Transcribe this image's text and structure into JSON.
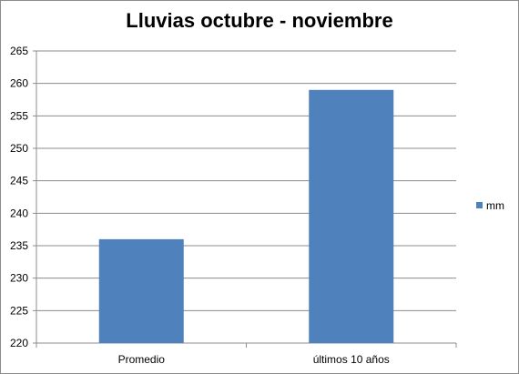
{
  "chart_data": {
    "type": "bar",
    "title": "Lluvias octubre - noviembre",
    "categories": [
      "Promedio",
      "últimos 10 años"
    ],
    "series": [
      {
        "name": "mm",
        "values": [
          236,
          259
        ],
        "color": "#4f81bd"
      }
    ],
    "ylim": [
      220,
      265
    ],
    "yticks": [
      220,
      225,
      230,
      235,
      240,
      245,
      250,
      255,
      260,
      265
    ],
    "grid": true,
    "legend": "right"
  }
}
